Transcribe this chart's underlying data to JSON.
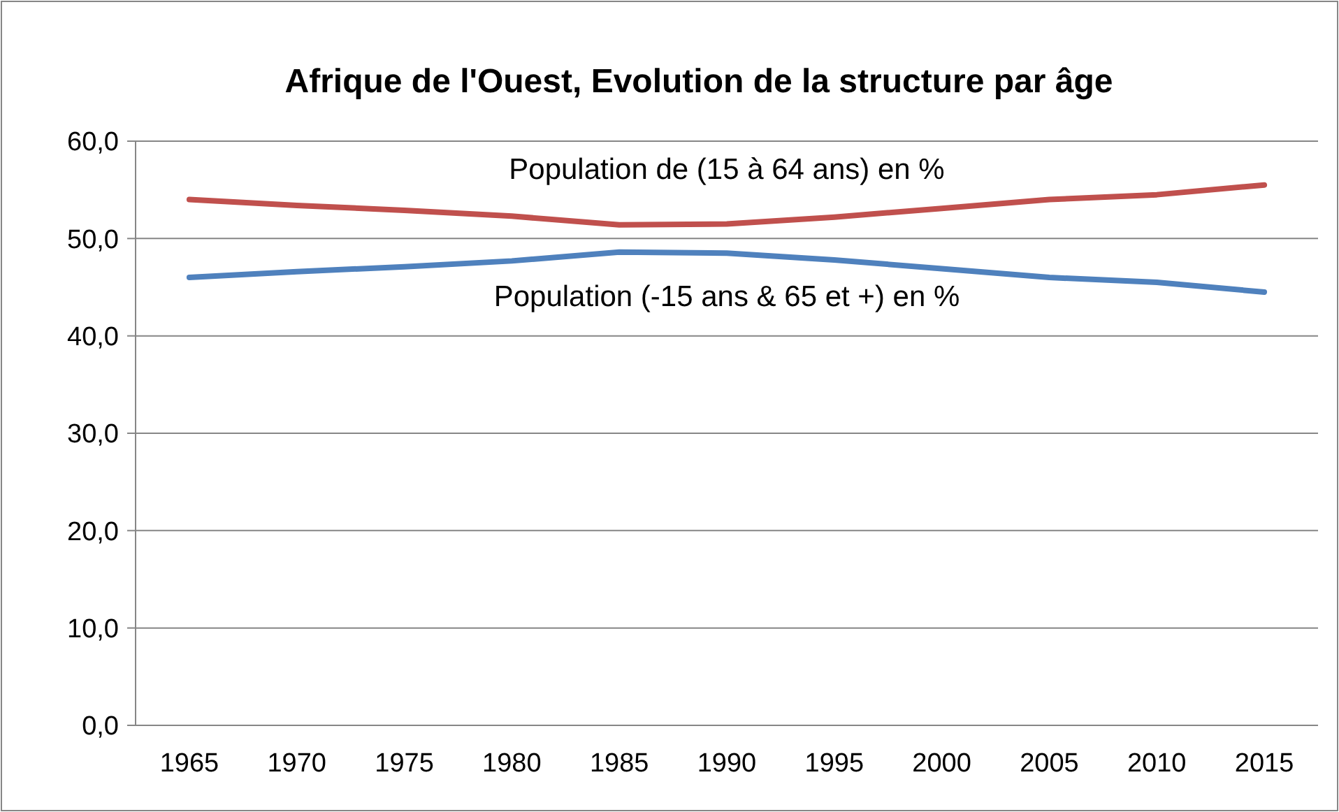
{
  "chart_data": {
    "type": "line",
    "title": "Afrique de l'Ouest, Evolution de la structure par âge",
    "categories": [
      "1965",
      "1970",
      "1975",
      "1980",
      "1985",
      "1990",
      "1995",
      "2000",
      "2005",
      "2010",
      "2015"
    ],
    "series": [
      {
        "name": "Population de (15 à 64 ans) en %",
        "color": "#c0504d",
        "values": [
          54.0,
          53.4,
          52.9,
          52.3,
          51.4,
          51.5,
          52.2,
          53.1,
          54.0,
          54.5,
          55.5
        ]
      },
      {
        "name": "Population (-15 ans & 65 et +) en %",
        "color": "#4f81bd",
        "values": [
          46.0,
          46.6,
          47.1,
          47.7,
          48.6,
          48.5,
          47.8,
          46.9,
          46.0,
          45.5,
          44.5
        ]
      }
    ],
    "ylim": [
      0,
      60
    ],
    "yticks": [
      {
        "value": 0,
        "label": "0,0"
      },
      {
        "value": 10,
        "label": "10,0"
      },
      {
        "value": 20,
        "label": "20,0"
      },
      {
        "value": 30,
        "label": "30,0"
      },
      {
        "value": 40,
        "label": "40,0"
      },
      {
        "value": 50,
        "label": "50,0"
      },
      {
        "value": 60,
        "label": "60,0"
      }
    ],
    "grid": "y",
    "marker": "none",
    "line_style": "solid"
  }
}
